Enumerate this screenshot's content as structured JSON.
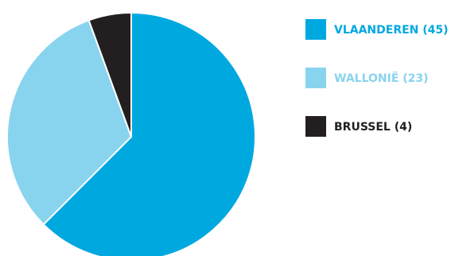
{
  "chart_data": {
    "type": "pie",
    "title": "",
    "slices": [
      {
        "label": "VLAANDEREN (45)",
        "value": 45,
        "color": "#00a8e0"
      },
      {
        "label": "WALLONIË (23)",
        "value": 23,
        "color": "#88d4ee"
      },
      {
        "label": "BRUSSEL (4)",
        "value": 4,
        "color": "#231f20"
      }
    ],
    "legend_position": "right"
  }
}
